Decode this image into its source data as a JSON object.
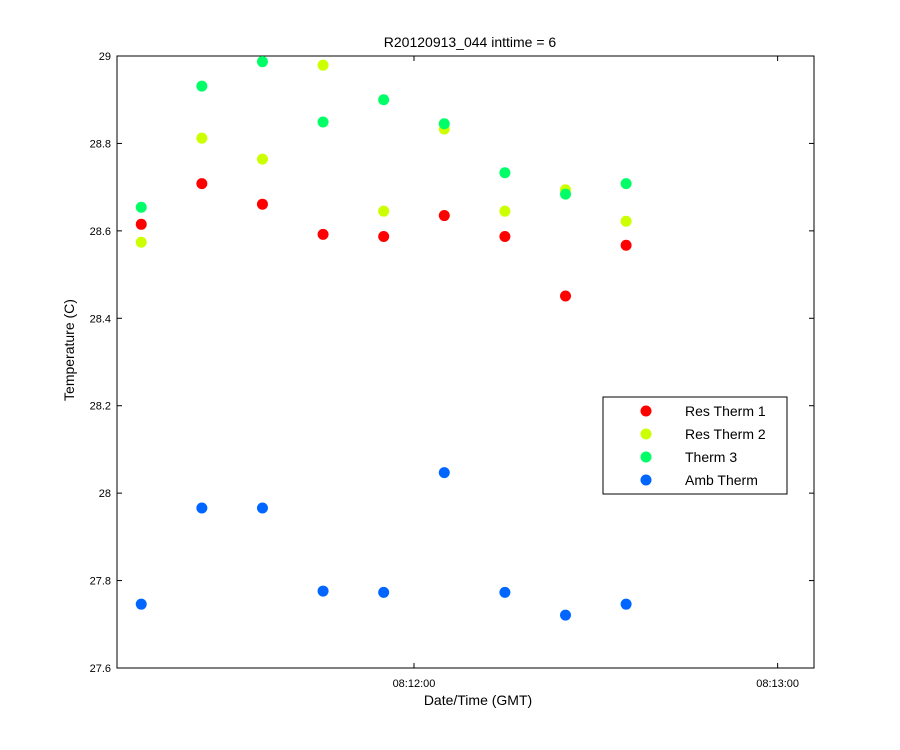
{
  "chart_data": {
    "type": "scatter",
    "title": "R20120913_044 inttime = 6",
    "xlabel": "Date/Time (GMT)",
    "ylabel": "Temperature (C)",
    "x_axis": {
      "min": "08:11:11",
      "max": "08:13:06",
      "ticks": [
        {
          "value": "08:12:00",
          "label": "08:12:00"
        },
        {
          "value": "08:13:00",
          "label": "08:13:00"
        }
      ]
    },
    "ylim": [
      27.6,
      29.0
    ],
    "yticks": [
      27.6,
      27.8,
      28,
      28.2,
      28.4,
      28.6,
      28.8,
      29
    ],
    "ytick_labels": [
      "27.6",
      "27.8",
      "28",
      "28.2",
      "28.4",
      "28.6",
      "28.8",
      "29"
    ],
    "grid": false,
    "legend_position": "right-middle",
    "x": [
      "08:11:15",
      "08:11:25",
      "08:11:35",
      "08:11:45",
      "08:11:55",
      "08:12:05",
      "08:12:15",
      "08:12:25",
      "08:12:35"
    ],
    "series": [
      {
        "name": "Res Therm 1",
        "color": "#ff0000",
        "values": [
          28.615,
          28.708,
          28.661,
          28.592,
          28.587,
          28.635,
          28.587,
          28.451,
          28.567
        ]
      },
      {
        "name": "Res Therm 2",
        "color": "#ccff00",
        "values": [
          28.574,
          28.812,
          28.764,
          28.979,
          28.645,
          28.833,
          28.645,
          28.694,
          28.622
        ]
      },
      {
        "name": "Therm 3",
        "color": "#00ff66",
        "values": [
          28.654,
          28.931,
          28.987,
          28.849,
          28.9,
          28.845,
          28.733,
          28.684,
          28.708
        ]
      },
      {
        "name": "Amb Therm",
        "color": "#0066ff",
        "values": [
          27.746,
          27.966,
          27.966,
          27.776,
          27.773,
          28.047,
          27.773,
          27.721,
          27.746
        ]
      }
    ]
  }
}
